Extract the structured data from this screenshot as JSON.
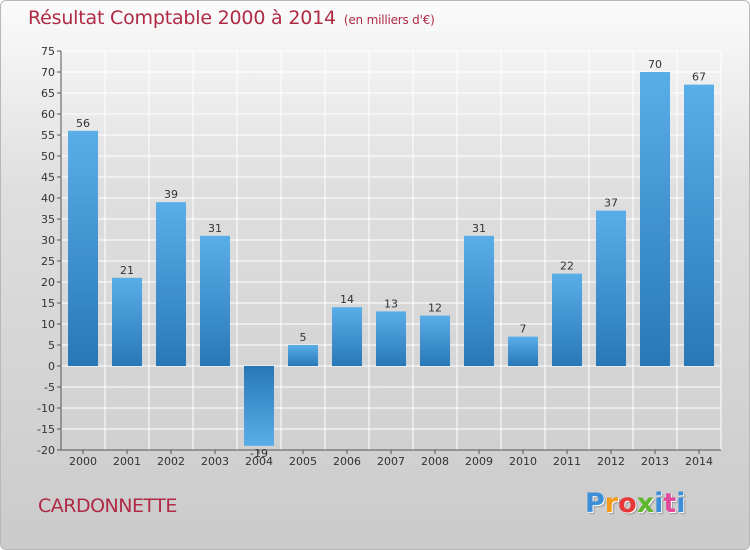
{
  "header": {
    "title": "Résultat Comptable 2000 à 2014",
    "subtitle": "(en milliers d'€)"
  },
  "footer": {
    "commune": "CARDONNETTE",
    "brand_letters": [
      "P",
      "r",
      "o",
      "x",
      "i",
      "t",
      "i"
    ]
  },
  "colors": {
    "title": "#b02a45",
    "bar_light": "#5aaee8",
    "bar_dark": "#2878b8",
    "grid": "#ffffff"
  },
  "chart_data": {
    "type": "bar",
    "title": "Résultat Comptable 2000 à 2014",
    "subtitle": "(en milliers d'€)",
    "categories": [
      "2000",
      "2001",
      "2002",
      "2003",
      "2004",
      "2005",
      "2006",
      "2007",
      "2008",
      "2009",
      "2010",
      "2011",
      "2012",
      "2013",
      "2014"
    ],
    "values": [
      56,
      21,
      39,
      31,
      -19,
      5,
      14,
      13,
      12,
      31,
      7,
      22,
      37,
      70,
      67
    ],
    "ylim": [
      -20,
      75
    ],
    "yticks": [
      -20,
      -15,
      -10,
      -5,
      0,
      5,
      10,
      15,
      20,
      25,
      30,
      35,
      40,
      45,
      50,
      55,
      60,
      65,
      70,
      75
    ],
    "grid": true,
    "xlabel": "",
    "ylabel": ""
  }
}
